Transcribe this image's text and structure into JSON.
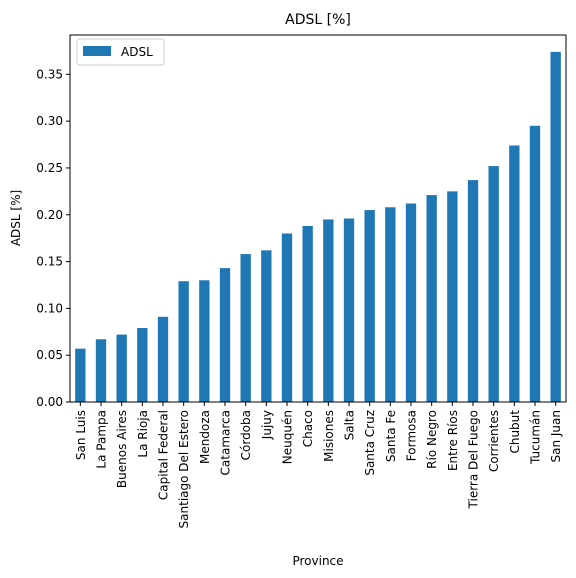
{
  "chart_data": {
    "type": "bar",
    "title": "ADSL [%]",
    "xlabel": "Province",
    "ylabel": "ADSL [%]",
    "ylim": [
      0,
      0.392
    ],
    "yticks": [
      0.0,
      0.05,
      0.1,
      0.15,
      0.2,
      0.25,
      0.3,
      0.35
    ],
    "ytick_labels": [
      "0.00",
      "0.05",
      "0.10",
      "0.15",
      "0.20",
      "0.25",
      "0.30",
      "0.35"
    ],
    "grid": false,
    "legend": {
      "position": "top-left",
      "entries": [
        "ADSL"
      ]
    },
    "bar_color": "#1f77b4",
    "categories": [
      "San Luis",
      "La Pampa",
      "Buenos Aires",
      "La Rioja",
      "Capital Federal",
      "Santiago Del Estero",
      "Mendoza",
      "Catamarca",
      "Córdoba",
      "Jujuy",
      "Neuquén",
      "Chaco",
      "Misiones",
      "Salta",
      "Santa Cruz",
      "Santa Fe",
      "Formosa",
      "Río Negro",
      "Entre Ríos",
      "Tierra Del Fuego",
      "Corrientes",
      "Chubut",
      "Tucumán",
      "San Juan"
    ],
    "series": [
      {
        "name": "ADSL",
        "values": [
          0.057,
          0.067,
          0.072,
          0.079,
          0.091,
          0.129,
          0.13,
          0.143,
          0.158,
          0.162,
          0.18,
          0.188,
          0.195,
          0.196,
          0.205,
          0.208,
          0.212,
          0.221,
          0.225,
          0.237,
          0.252,
          0.274,
          0.295,
          0.374
        ]
      }
    ]
  }
}
